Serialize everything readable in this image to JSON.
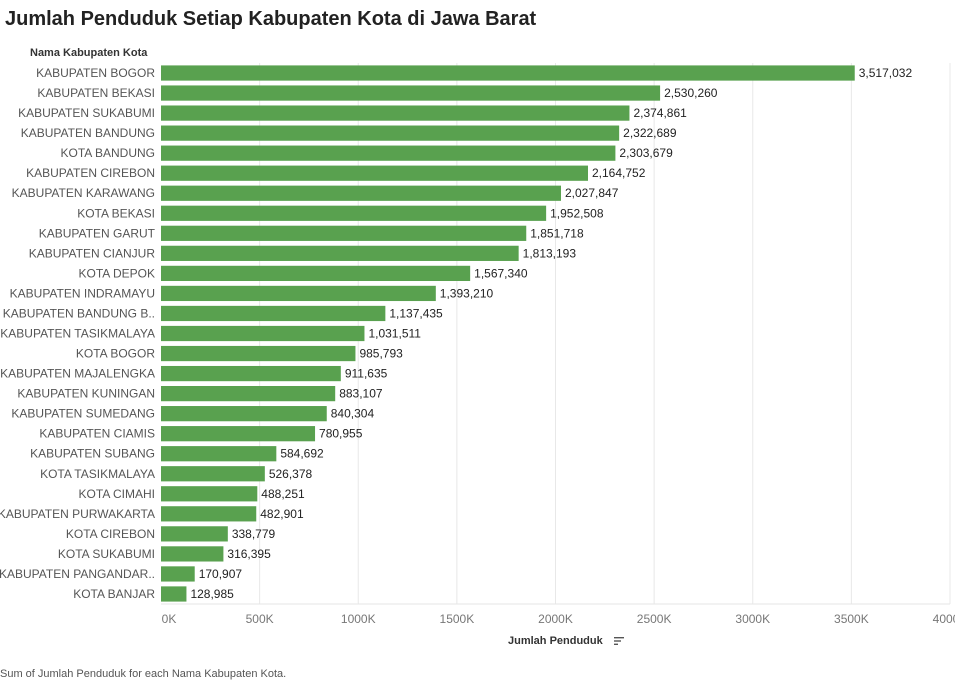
{
  "header": {
    "title": "Jumlah Penduduk Setiap Kabupaten Kota di Jawa Barat",
    "row_header": "Nama Kabupaten Kota",
    "x_axis_title": "Jumlah Penduduk",
    "caption": "Sum of Jumlah Penduduk for each Nama Kabupaten Kota."
  },
  "colors": {
    "bar": "#59a14f",
    "grid": "#e8e8e8",
    "axis": "#999999"
  },
  "icons": {
    "sort": "sort-descending-icon"
  },
  "chart_data": {
    "type": "bar",
    "orientation": "horizontal",
    "title": "Jumlah Penduduk Setiap Kabupaten Kota di Jawa Barat",
    "xlabel": "Jumlah Penduduk",
    "ylabel": "Nama Kabupaten Kota",
    "xlim": [
      0,
      4000000
    ],
    "x_ticks": [
      0,
      500000,
      1000000,
      1500000,
      2000000,
      2500000,
      3000000,
      3500000,
      4000000
    ],
    "x_tick_labels": [
      "0K",
      "500K",
      "1000K",
      "1500K",
      "2000K",
      "2500K",
      "3000K",
      "3500K",
      "4000K"
    ],
    "grid": true,
    "categories": [
      "KABUPATEN BOGOR",
      "KABUPATEN BEKASI",
      "KABUPATEN SUKABUMI",
      "KABUPATEN BANDUNG",
      "KOTA BANDUNG",
      "KABUPATEN CIREBON",
      "KABUPATEN KARAWANG",
      "KOTA BEKASI",
      "KABUPATEN GARUT",
      "KABUPATEN CIANJUR",
      "KOTA DEPOK",
      "KABUPATEN INDRAMAYU",
      "KABUPATEN BANDUNG B..",
      "KABUPATEN TASIKMALAYA",
      "KOTA BOGOR",
      "KABUPATEN MAJALENGKA",
      "KABUPATEN KUNINGAN",
      "KABUPATEN SUMEDANG",
      "KABUPATEN CIAMIS",
      "KABUPATEN SUBANG",
      "KOTA TASIKMALAYA",
      "KOTA CIMAHI",
      "KABUPATEN PURWAKARTA",
      "KOTA CIREBON",
      "KOTA SUKABUMI",
      "KABUPATEN PANGANDAR..",
      "KOTA BANJAR"
    ],
    "values": [
      3517032,
      2530260,
      2374861,
      2322689,
      2303679,
      2164752,
      2027847,
      1952508,
      1851718,
      1813193,
      1567340,
      1393210,
      1137435,
      1031511,
      985793,
      911635,
      883107,
      840304,
      780955,
      584692,
      526378,
      488251,
      482901,
      338779,
      316395,
      170907,
      128985
    ],
    "value_labels": [
      "3,517,032",
      "2,530,260",
      "2,374,861",
      "2,322,689",
      "2,303,679",
      "2,164,752",
      "2,027,847",
      "1,952,508",
      "1,851,718",
      "1,813,193",
      "1,567,340",
      "1,393,210",
      "1,137,435",
      "1,031,511",
      "985,793",
      "911,635",
      "883,107",
      "840,304",
      "780,955",
      "584,692",
      "526,378",
      "488,251",
      "482,901",
      "338,779",
      "316,395",
      "170,907",
      "128,985"
    ]
  }
}
